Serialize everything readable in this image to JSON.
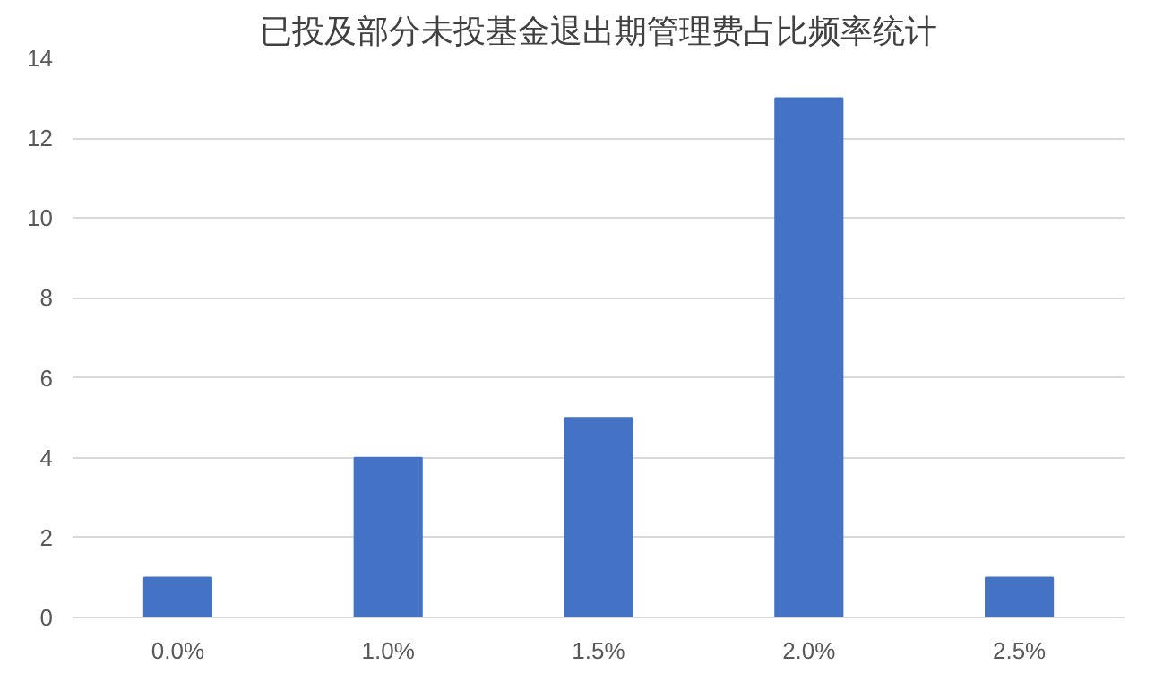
{
  "chart_data": {
    "type": "bar",
    "title": "已投及部分未投基金退出期管理费占比频率统计",
    "categories": [
      "0.0%",
      "1.0%",
      "1.5%",
      "2.0%",
      "2.5%"
    ],
    "values": [
      1,
      4,
      5,
      13,
      1
    ],
    "color": "#4472c4",
    "ylim": [
      0,
      14
    ],
    "yticks": [
      0,
      2,
      4,
      6,
      8,
      10,
      12,
      14
    ],
    "grid": "y"
  }
}
